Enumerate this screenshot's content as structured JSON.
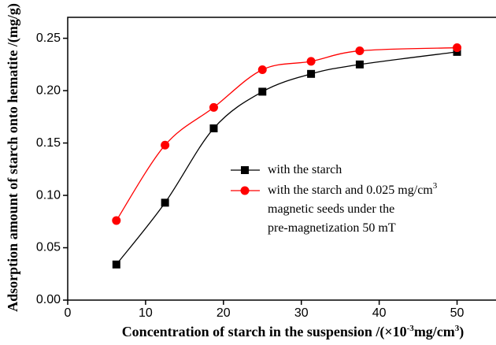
{
  "chart_data": {
    "type": "line",
    "x_label": [
      "Concentration of  starch in the suspension /(×10",
      "-3",
      "mg/cm",
      "3",
      ")"
    ],
    "y_label": "Adsorption amount of starch onto hematite /(mg/g)",
    "x": [
      6.25,
      12.5,
      18.75,
      25,
      31.25,
      37.5,
      50
    ],
    "series": [
      {
        "name": [
          [
            "with the starch"
          ]
        ],
        "color": "#000000",
        "marker": "square",
        "values": [
          0.034,
          0.093,
          0.164,
          0.199,
          0.216,
          0.225,
          0.237
        ]
      },
      {
        "name": [
          [
            "with the  starch  and  0.025 mg/cm",
            "3"
          ],
          [
            "magnetic seeds under the"
          ],
          [
            "pre-magnetization 50 mT"
          ]
        ],
        "color": "#ff0000",
        "marker": "circle",
        "values": [
          0.076,
          0.148,
          0.184,
          0.22,
          0.228,
          0.238,
          0.241
        ]
      }
    ],
    "xlim": [
      0,
      55
    ],
    "xticks": [
      0,
      10,
      20,
      30,
      40,
      50
    ],
    "ylim": [
      0,
      0.27
    ],
    "yticks": [
      {
        "value": 0,
        "label": "0.00"
      },
      {
        "value": 0.05,
        "label": "0.05"
      },
      {
        "value": 0.1,
        "label": "0.10"
      },
      {
        "value": 0.15,
        "label": "0.15"
      },
      {
        "value": 0.2,
        "label": "0.20"
      },
      {
        "value": 0.25,
        "label": "0.25"
      }
    ]
  }
}
